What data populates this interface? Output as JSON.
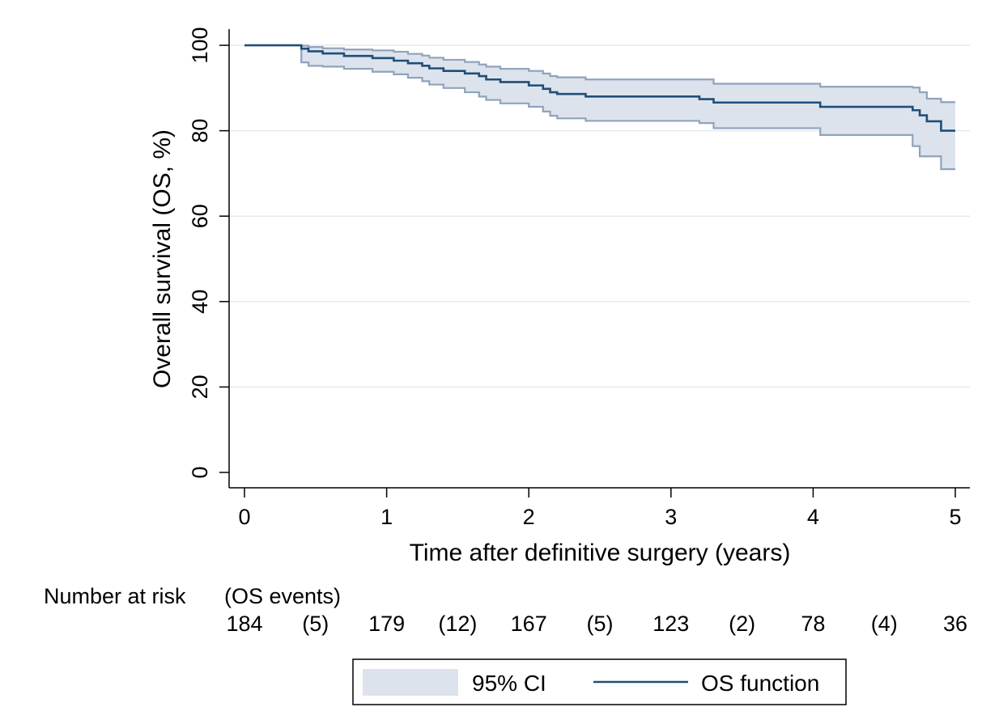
{
  "chart_data": {
    "type": "line",
    "subtype": "kaplan-meier",
    "title": "",
    "xlabel": "Time after definitive surgery (years)",
    "ylabel": "Overall survival (OS, %)",
    "xlim": [
      0,
      5
    ],
    "ylim": [
      0,
      100
    ],
    "xticks": [
      0,
      1,
      2,
      3,
      4,
      5
    ],
    "yticks": [
      0,
      20,
      40,
      60,
      80,
      100
    ],
    "grid": "horizontal",
    "legend_placement": "bottom-center",
    "colors": {
      "os": "#1f4e79",
      "ci_fill": "#dde3ec",
      "ci_edge": "#8fa3bc",
      "grid": "#e3ebec"
    },
    "series": [
      {
        "name": "OS function",
        "kind": "step-line",
        "x": [
          0,
          0.4,
          0.45,
          0.55,
          0.7,
          0.9,
          1.05,
          1.15,
          1.25,
          1.3,
          1.4,
          1.55,
          1.65,
          1.7,
          1.8,
          2.0,
          2.1,
          2.15,
          2.2,
          2.4,
          3.2,
          3.3,
          4.05,
          4.7,
          4.75,
          4.8,
          4.9,
          5.0
        ],
        "y": [
          100,
          99.2,
          98.6,
          98.1,
          97.5,
          97.0,
          96.4,
          95.8,
          95.2,
          94.6,
          94.0,
          93.4,
          92.8,
          92.0,
          91.4,
          90.6,
          89.8,
          89.0,
          88.6,
          88.0,
          87.4,
          86.6,
          85.6,
          84.8,
          83.6,
          82.2,
          80.0,
          80.0
        ]
      },
      {
        "name": "95% CI",
        "kind": "band",
        "x": [
          0,
          0.4,
          0.45,
          0.55,
          0.7,
          0.9,
          1.05,
          1.15,
          1.25,
          1.3,
          1.4,
          1.55,
          1.65,
          1.7,
          1.8,
          2.0,
          2.1,
          2.15,
          2.2,
          2.4,
          3.2,
          3.3,
          4.05,
          4.7,
          4.75,
          4.8,
          4.9,
          5.0
        ],
        "lower": [
          100,
          96.0,
          95.2,
          95.0,
          94.5,
          93.8,
          93.2,
          92.4,
          91.6,
          90.8,
          90.0,
          89.0,
          88.0,
          87.2,
          86.4,
          85.6,
          84.5,
          83.5,
          82.9,
          82.3,
          81.8,
          80.6,
          79.0,
          76.4,
          74.0,
          74.0,
          71.0,
          71.0
        ],
        "upper": [
          100,
          99.9,
          99.6,
          99.3,
          99.0,
          98.8,
          98.5,
          98.0,
          97.6,
          97.1,
          96.6,
          96.1,
          95.5,
          95.0,
          94.5,
          94.0,
          93.4,
          92.8,
          92.5,
          92.0,
          92.0,
          91.0,
          90.3,
          90.1,
          89.0,
          87.5,
          86.7,
          86.7
        ]
      }
    ],
    "risk_table": {
      "header": "Number at risk",
      "events_header": "(OS events)",
      "at_risk": [
        {
          "x": 0,
          "value": "184"
        },
        {
          "x": 1,
          "value": "179"
        },
        {
          "x": 2,
          "value": "167"
        },
        {
          "x": 3,
          "value": "123"
        },
        {
          "x": 4,
          "value": "78"
        },
        {
          "x": 5,
          "value": "36"
        }
      ],
      "events": [
        {
          "x": 0.5,
          "value": "(5)"
        },
        {
          "x": 1.5,
          "value": "(12)"
        },
        {
          "x": 2.5,
          "value": "(5)"
        },
        {
          "x": 3.5,
          "value": "(2)"
        },
        {
          "x": 4.5,
          "value": "(4)"
        }
      ]
    },
    "legend": [
      {
        "key": "ci",
        "label": "95% CI"
      },
      {
        "key": "os",
        "label": "OS function"
      }
    ]
  }
}
